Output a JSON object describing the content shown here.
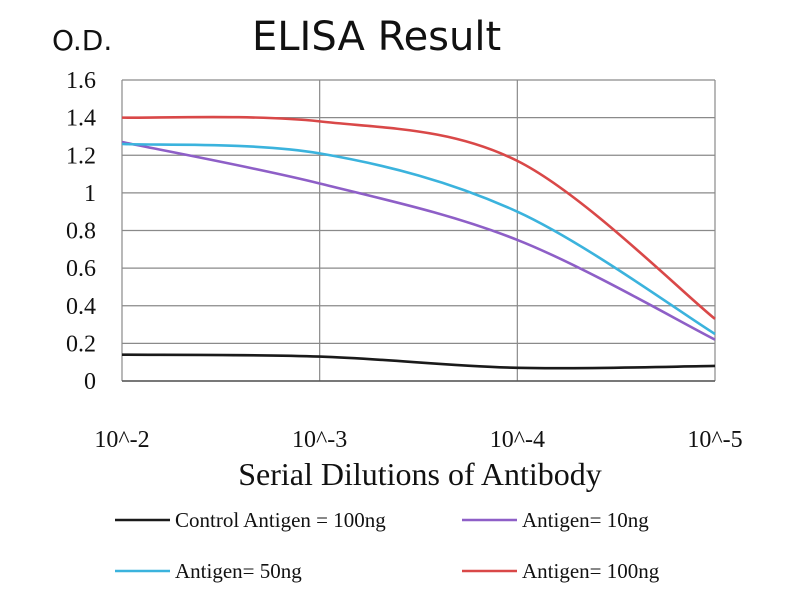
{
  "chart_data": {
    "type": "line",
    "title": "ELISA Result",
    "ylabel": "O.D.",
    "xlabel": "Serial Dilutions of Antibody",
    "x": [
      "10^-2",
      "10^-3",
      "10^-4",
      "10^-5"
    ],
    "ylim": [
      0,
      1.6
    ],
    "yticks": [
      "1.6",
      "1.4",
      "1.2",
      "1",
      "0.8",
      "0.6",
      "0.4",
      "0.2",
      "0"
    ],
    "grid": true,
    "legend_position": "bottom",
    "series": [
      {
        "name": "Control Antigen = 100ng",
        "color": "#1a1a1a",
        "values": [
          0.14,
          0.13,
          0.07,
          0.08
        ]
      },
      {
        "name": "Antigen= 10ng",
        "color": "#8e5fc7",
        "values": [
          1.27,
          1.05,
          0.75,
          0.22
        ]
      },
      {
        "name": "Antigen= 50ng",
        "color": "#3bb3dd",
        "values": [
          1.26,
          1.21,
          0.9,
          0.25
        ]
      },
      {
        "name": "Antigen= 100ng",
        "color": "#d94848",
        "values": [
          1.4,
          1.38,
          1.17,
          0.33
        ]
      }
    ]
  }
}
